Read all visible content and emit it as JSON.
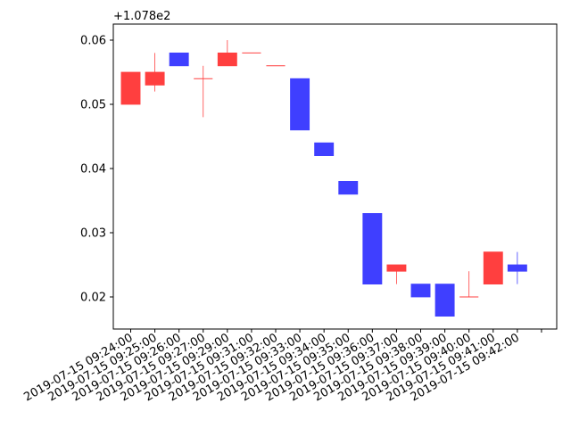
{
  "chart_data": {
    "type": "candlestick",
    "title": "",
    "xlabel": "",
    "ylabel": "",
    "y_offset_label": "+1.078e2",
    "y_offset": 107.8,
    "ylim": [
      0.015,
      0.0625
    ],
    "yticks": [
      0.02,
      0.03,
      0.04,
      0.05,
      0.06
    ],
    "ytick_labels": [
      "0.02",
      "0.03",
      "0.04",
      "0.05",
      "0.06"
    ],
    "grid": false,
    "colors": {
      "up": "#ff0000",
      "down": "#0000ff",
      "alpha": 0.75
    },
    "x_labels": [
      "2019-07-15 09:24:00",
      "2019-07-15 09:25:00",
      "2019-07-15 09:26:00",
      "2019-07-15 09:27:00",
      "2019-07-15 09:29:00",
      "2019-07-15 09:31:00",
      "2019-07-15 09:32:00",
      "2019-07-15 09:33:00",
      "2019-07-15 09:34:00",
      "2019-07-15 09:35:00",
      "2019-07-15 09:36:00",
      "2019-07-15 09:37:00",
      "2019-07-15 09:38:00",
      "2019-07-15 09:39:00",
      "2019-07-15 09:40:00",
      "2019-07-15 09:41:00",
      "2019-07-15 09:42:00"
    ],
    "candles": [
      {
        "open": 0.05,
        "high": 0.055,
        "low": 0.05,
        "close": 0.055
      },
      {
        "open": 0.053,
        "high": 0.058,
        "low": 0.052,
        "close": 0.055
      },
      {
        "open": 0.058,
        "high": 0.058,
        "low": 0.056,
        "close": 0.056
      },
      {
        "open": 0.054,
        "high": 0.056,
        "low": 0.048,
        "close": 0.054
      },
      {
        "open": 0.056,
        "high": 0.06,
        "low": 0.056,
        "close": 0.058
      },
      {
        "open": 0.058,
        "high": 0.058,
        "low": 0.058,
        "close": 0.058
      },
      {
        "open": 0.056,
        "high": 0.056,
        "low": 0.056,
        "close": 0.056
      },
      {
        "open": 0.054,
        "high": 0.054,
        "low": 0.046,
        "close": 0.046
      },
      {
        "open": 0.044,
        "high": 0.044,
        "low": 0.042,
        "close": 0.042
      },
      {
        "open": 0.038,
        "high": 0.038,
        "low": 0.036,
        "close": 0.036
      },
      {
        "open": 0.033,
        "high": 0.033,
        "low": 0.022,
        "close": 0.022
      },
      {
        "open": 0.024,
        "high": 0.025,
        "low": 0.022,
        "close": 0.025
      },
      {
        "open": 0.022,
        "high": 0.022,
        "low": 0.02,
        "close": 0.02
      },
      {
        "open": 0.022,
        "high": 0.022,
        "low": 0.017,
        "close": 0.017
      },
      {
        "open": 0.02,
        "high": 0.024,
        "low": 0.02,
        "close": 0.02
      },
      {
        "open": 0.022,
        "high": 0.027,
        "low": 0.022,
        "close": 0.027
      },
      {
        "open": 0.025,
        "high": 0.027,
        "low": 0.022,
        "close": 0.024
      }
    ]
  }
}
